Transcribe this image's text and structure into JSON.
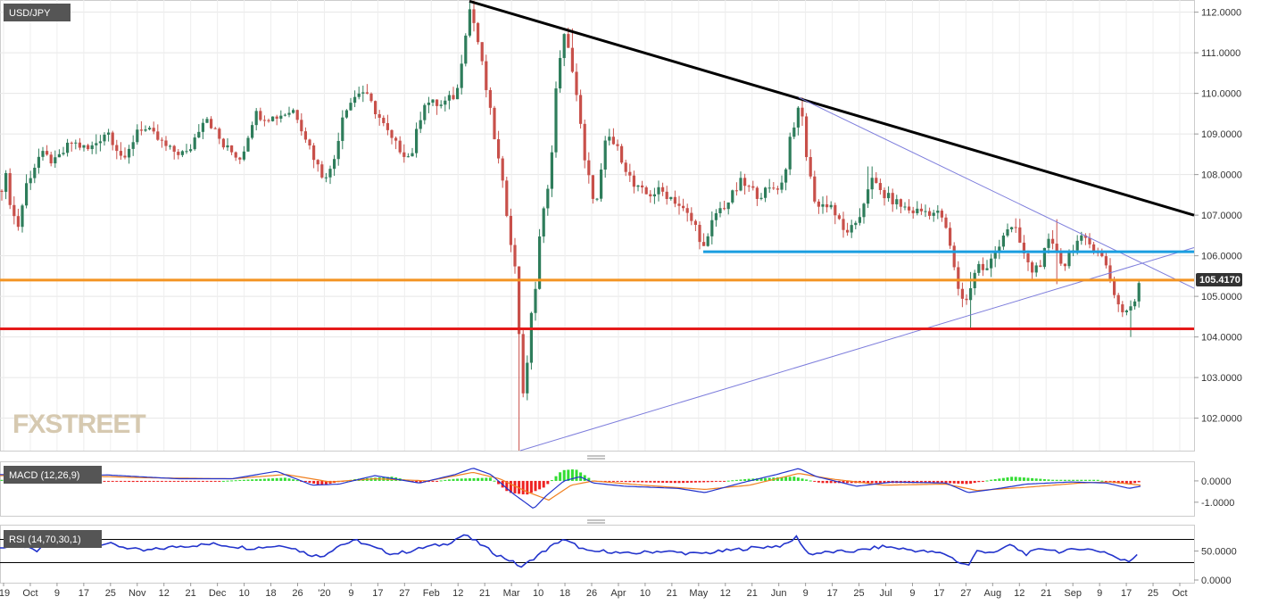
{
  "chart_data": [
    {
      "type": "candlestick",
      "title": "USD/JPY",
      "watermark": "FXSTREET",
      "last_price_label": "105.4170",
      "y_ticks": [
        "112.0000",
        "111.0000",
        "110.0000",
        "109.0000",
        "108.0000",
        "107.0000",
        "106.0000",
        "105.0000",
        "104.0000",
        "103.0000",
        "102.0000"
      ],
      "ylim": [
        101.2,
        112.3
      ],
      "x_ticks": [
        "'19",
        "Oct",
        "9",
        "17",
        "25",
        "Nov",
        "12",
        "21",
        "Dec",
        "10",
        "18",
        "26",
        "'20",
        "9",
        "17",
        "27",
        "Feb",
        "12",
        "21",
        "Mar",
        "10",
        "18",
        "26",
        "Apr",
        "10",
        "21",
        "May",
        "12",
        "21",
        "Jun",
        "9",
        "17",
        "25",
        "Jul",
        "9",
        "17",
        "27",
        "Aug",
        "12",
        "21",
        "Sep",
        "9",
        "17",
        "25",
        "Oct"
      ],
      "colors": {
        "up": "#2e7d5b",
        "down": "#c8504a",
        "last_price_box": "#333333"
      },
      "anchors": [
        [
          0,
          107.6
        ],
        [
          8,
          108.0
        ],
        [
          12,
          107.2
        ],
        [
          20,
          106.7
        ],
        [
          30,
          107.8
        ],
        [
          45,
          108.5
        ],
        [
          62,
          108.3
        ],
        [
          80,
          108.8
        ],
        [
          100,
          108.6
        ],
        [
          120,
          109.1
        ],
        [
          140,
          108.3
        ],
        [
          155,
          109.2
        ],
        [
          170,
          109.0
        ],
        [
          190,
          108.6
        ],
        [
          210,
          108.5
        ],
        [
          230,
          109.5
        ],
        [
          250,
          108.7
        ],
        [
          270,
          108.4
        ],
        [
          285,
          109.5
        ],
        [
          305,
          109.4
        ],
        [
          330,
          109.6
        ],
        [
          345,
          108.8
        ],
        [
          360,
          108.0
        ],
        [
          372,
          108.1
        ],
        [
          385,
          109.6
        ],
        [
          405,
          110.1
        ],
        [
          420,
          109.6
        ],
        [
          440,
          108.8
        ],
        [
          460,
          108.4
        ],
        [
          475,
          109.8
        ],
        [
          495,
          109.7
        ],
        [
          512,
          110.0
        ],
        [
          520,
          111.3
        ],
        [
          526,
          112.1
        ],
        [
          533,
          111.6
        ],
        [
          548,
          109.7
        ],
        [
          555,
          108.8
        ],
        [
          565,
          107.5
        ],
        [
          575,
          106.0
        ],
        [
          580,
          105.2
        ],
        [
          584,
          102.5
        ],
        [
          590,
          103.0
        ],
        [
          595,
          104.6
        ],
        [
          600,
          105.2
        ],
        [
          605,
          106.5
        ],
        [
          612,
          107.5
        ],
        [
          618,
          108.4
        ],
        [
          625,
          110.7
        ],
        [
          632,
          111.4
        ],
        [
          640,
          110.8
        ],
        [
          648,
          109.7
        ],
        [
          655,
          108.3
        ],
        [
          668,
          107.2
        ],
        [
          680,
          109.0
        ],
        [
          695,
          108.5
        ],
        [
          710,
          107.7
        ],
        [
          725,
          107.5
        ],
        [
          740,
          107.6
        ],
        [
          755,
          107.4
        ],
        [
          770,
          107.0
        ],
        [
          780,
          106.7
        ],
        [
          790,
          106.1
        ],
        [
          800,
          107.0
        ],
        [
          815,
          107.3
        ],
        [
          830,
          107.8
        ],
        [
          850,
          107.5
        ],
        [
          870,
          107.7
        ],
        [
          878,
          107.8
        ],
        [
          885,
          108.9
        ],
        [
          893,
          109.5
        ],
        [
          898,
          109.6
        ],
        [
          905,
          108.2
        ],
        [
          915,
          107.2
        ],
        [
          930,
          107.3
        ],
        [
          945,
          106.6
        ],
        [
          960,
          106.7
        ],
        [
          975,
          107.9
        ],
        [
          990,
          107.5
        ],
        [
          1005,
          107.3
        ],
        [
          1020,
          107.1
        ],
        [
          1040,
          107.1
        ],
        [
          1055,
          107.0
        ],
        [
          1065,
          106.2
        ],
        [
          1072,
          105.3
        ],
        [
          1082,
          104.8
        ],
        [
          1088,
          105.3
        ],
        [
          1095,
          105.8
        ],
        [
          1105,
          105.6
        ],
        [
          1115,
          106.1
        ],
        [
          1128,
          106.7
        ],
        [
          1138,
          106.6
        ],
        [
          1148,
          106.0
        ],
        [
          1155,
          105.6
        ],
        [
          1165,
          105.8
        ],
        [
          1175,
          106.3
        ],
        [
          1185,
          106.1
        ],
        [
          1192,
          105.7
        ],
        [
          1200,
          106.2
        ],
        [
          1210,
          106.4
        ],
        [
          1220,
          106.3
        ],
        [
          1232,
          106.1
        ],
        [
          1240,
          105.7
        ],
        [
          1247,
          105.2
        ],
        [
          1253,
          104.8
        ],
        [
          1260,
          104.6
        ],
        [
          1265,
          104.7
        ],
        [
          1272,
          104.9
        ],
        [
          1278,
          105.4
        ]
      ],
      "wicks": [
        [
          526,
          112.27,
          111.4
        ],
        [
          582,
          104.8,
          101.2
        ],
        [
          586,
          103.4,
          102.7
        ],
        [
          590,
          103.5,
          102.9
        ],
        [
          640,
          111.6,
          110.5
        ],
        [
          898,
          109.9,
          109.2
        ],
        [
          1088,
          105.6,
          104.2
        ],
        [
          1265,
          104.9,
          104.0
        ],
        [
          1185,
          106.9,
          105.3
        ],
        [
          975,
          108.2,
          107.4
        ]
      ],
      "price_lines": [
        {
          "name": "resistance-line",
          "color": "#1a9ee0",
          "value": 106.1,
          "x_start": 788
        },
        {
          "name": "orange-support-line",
          "color": "#f39422",
          "value": 105.4,
          "x_start": 0
        },
        {
          "name": "red-support-line",
          "color": "#e51a1a",
          "value": 104.2,
          "x_start": 0
        }
      ],
      "trendlines": [
        {
          "name": "downtrend-line",
          "color": "#000000",
          "from": [
            526,
            112.27
          ],
          "to": [
            1338,
            107.0
          ]
        },
        {
          "name": "rising-trendline",
          "color": "#7d7ddc",
          "from": [
            583,
            101.2
          ],
          "to": [
            1338,
            106.2
          ]
        },
        {
          "name": "falling-thin-trendline",
          "color": "#7d7ddc",
          "from": [
            895,
            109.9
          ],
          "to": [
            1338,
            105.2
          ]
        }
      ]
    },
    {
      "type": "macd",
      "title": "MACD (12,26,9)",
      "y_ticks": [
        "0.0000",
        "-1.0000"
      ],
      "ylim": [
        -1.3,
        0.75
      ],
      "colors": {
        "macd": "#2233cc",
        "signal": "#f08020",
        "hist_up": "#33dd33",
        "hist_down": "#ee2222"
      },
      "macd_anchors": [
        [
          0,
          0.3
        ],
        [
          60,
          0.25
        ],
        [
          120,
          0.28
        ],
        [
          200,
          0.1
        ],
        [
          260,
          0.1
        ],
        [
          310,
          0.45
        ],
        [
          350,
          -0.2
        ],
        [
          380,
          -0.15
        ],
        [
          420,
          0.25
        ],
        [
          470,
          -0.1
        ],
        [
          510,
          0.3
        ],
        [
          530,
          0.6
        ],
        [
          550,
          0.3
        ],
        [
          575,
          -0.6
        ],
        [
          598,
          -1.3
        ],
        [
          612,
          -0.7
        ],
        [
          632,
          0.0
        ],
        [
          650,
          0.2
        ],
        [
          665,
          -0.1
        ],
        [
          700,
          -0.25
        ],
        [
          760,
          -0.35
        ],
        [
          790,
          -0.55
        ],
        [
          830,
          -0.1
        ],
        [
          870,
          0.3
        ],
        [
          895,
          0.58
        ],
        [
          915,
          0.2
        ],
        [
          960,
          -0.25
        ],
        [
          1000,
          -0.05
        ],
        [
          1060,
          -0.1
        ],
        [
          1085,
          -0.55
        ],
        [
          1120,
          -0.35
        ],
        [
          1150,
          -0.15
        ],
        [
          1200,
          -0.05
        ],
        [
          1240,
          -0.1
        ],
        [
          1265,
          -0.35
        ],
        [
          1278,
          -0.25
        ]
      ],
      "signal_anchors": [
        [
          0,
          0.25
        ],
        [
          80,
          0.25
        ],
        [
          160,
          0.15
        ],
        [
          260,
          0.1
        ],
        [
          320,
          0.3
        ],
        [
          370,
          -0.05
        ],
        [
          420,
          0.1
        ],
        [
          480,
          0.0
        ],
        [
          530,
          0.4
        ],
        [
          560,
          0.1
        ],
        [
          590,
          -0.5
        ],
        [
          615,
          -0.9
        ],
        [
          640,
          -0.2
        ],
        [
          665,
          0.0
        ],
        [
          720,
          -0.2
        ],
        [
          790,
          -0.4
        ],
        [
          840,
          -0.2
        ],
        [
          895,
          0.35
        ],
        [
          930,
          0.1
        ],
        [
          990,
          -0.2
        ],
        [
          1060,
          -0.15
        ],
        [
          1095,
          -0.45
        ],
        [
          1150,
          -0.3
        ],
        [
          1210,
          -0.1
        ],
        [
          1245,
          -0.05
        ],
        [
          1278,
          -0.2
        ]
      ],
      "hist_anchors": [
        [
          0,
          0.05
        ],
        [
          80,
          0.0
        ],
        [
          150,
          -0.05
        ],
        [
          250,
          0.0
        ],
        [
          320,
          0.15
        ],
        [
          360,
          -0.2
        ],
        [
          400,
          0.1
        ],
        [
          440,
          0.2
        ],
        [
          470,
          -0.1
        ],
        [
          510,
          0.1
        ],
        [
          550,
          0.15
        ],
        [
          570,
          -0.55
        ],
        [
          590,
          -0.65
        ],
        [
          610,
          -0.3
        ],
        [
          630,
          0.5
        ],
        [
          645,
          0.55
        ],
        [
          665,
          0.0
        ],
        [
          700,
          -0.05
        ],
        [
          760,
          -0.1
        ],
        [
          800,
          -0.05
        ],
        [
          840,
          0.1
        ],
        [
          890,
          0.2
        ],
        [
          920,
          -0.1
        ],
        [
          980,
          -0.1
        ],
        [
          1060,
          -0.1
        ],
        [
          1085,
          -0.15
        ],
        [
          1110,
          0.05
        ],
        [
          1135,
          0.2
        ],
        [
          1180,
          0.05
        ],
        [
          1230,
          0.05
        ],
        [
          1248,
          -0.1
        ],
        [
          1265,
          -0.15
        ],
        [
          1278,
          -0.05
        ]
      ]
    },
    {
      "type": "rsi",
      "title": "RSI (14,70,30,1)",
      "y_ticks": [
        "50.0000",
        "0.0000"
      ],
      "levels": [
        70,
        30
      ],
      "ylim": [
        0,
        100
      ],
      "colors": {
        "rsi": "#2233cc",
        "levels": "#000000"
      },
      "rsi_anchors": [
        [
          0,
          55
        ],
        [
          20,
          60
        ],
        [
          40,
          50
        ],
        [
          60,
          62
        ],
        [
          80,
          60
        ],
        [
          120,
          63
        ],
        [
          160,
          50
        ],
        [
          200,
          58
        ],
        [
          240,
          62
        ],
        [
          280,
          55
        ],
        [
          320,
          60
        ],
        [
          345,
          45
        ],
        [
          360,
          40
        ],
        [
          380,
          60
        ],
        [
          400,
          68
        ],
        [
          420,
          55
        ],
        [
          440,
          45
        ],
        [
          460,
          50
        ],
        [
          480,
          58
        ],
        [
          500,
          62
        ],
        [
          520,
          78
        ],
        [
          535,
          65
        ],
        [
          555,
          45
        ],
        [
          570,
          35
        ],
        [
          585,
          22
        ],
        [
          600,
          40
        ],
        [
          615,
          55
        ],
        [
          630,
          70
        ],
        [
          645,
          60
        ],
        [
          660,
          48
        ],
        [
          680,
          50
        ],
        [
          700,
          45
        ],
        [
          740,
          50
        ],
        [
          780,
          45
        ],
        [
          800,
          48
        ],
        [
          840,
          55
        ],
        [
          880,
          60
        ],
        [
          893,
          75
        ],
        [
          905,
          45
        ],
        [
          930,
          48
        ],
        [
          960,
          50
        ],
        [
          990,
          58
        ],
        [
          1020,
          52
        ],
        [
          1060,
          45
        ],
        [
          1075,
          30
        ],
        [
          1085,
          25
        ],
        [
          1095,
          50
        ],
        [
          1120,
          48
        ],
        [
          1130,
          62
        ],
        [
          1150,
          45
        ],
        [
          1170,
          55
        ],
        [
          1190,
          48
        ],
        [
          1210,
          55
        ],
        [
          1240,
          48
        ],
        [
          1255,
          35
        ],
        [
          1265,
          32
        ],
        [
          1278,
          50
        ]
      ]
    }
  ]
}
